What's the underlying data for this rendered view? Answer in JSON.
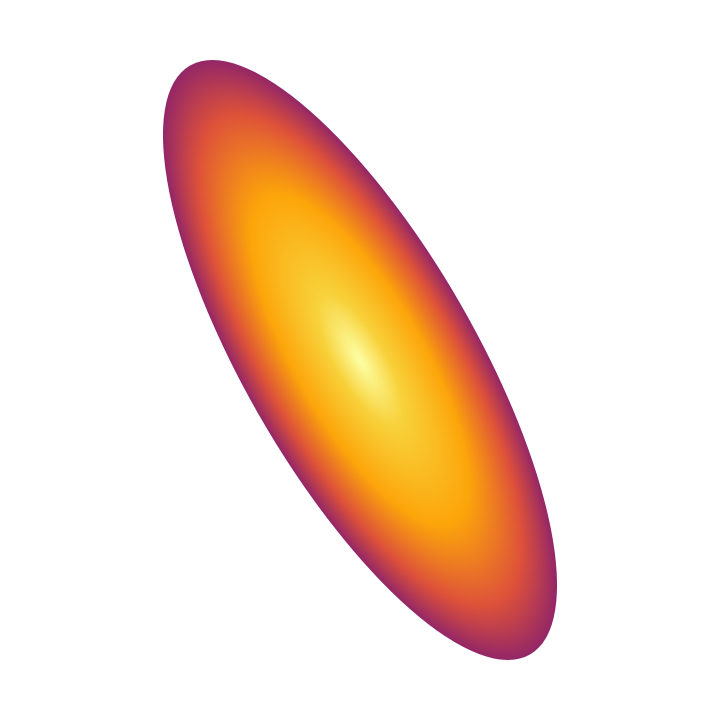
{
  "figure": {
    "background": "#ffffff",
    "shape": "ellipse",
    "fill": "radial-gradient",
    "colormap": "inferno",
    "colors": {
      "center": "#fcffa4",
      "inner": "#f8d13a",
      "mid": "#fca50a",
      "outer_mid": "#dd513a",
      "edge": "#932667"
    }
  }
}
